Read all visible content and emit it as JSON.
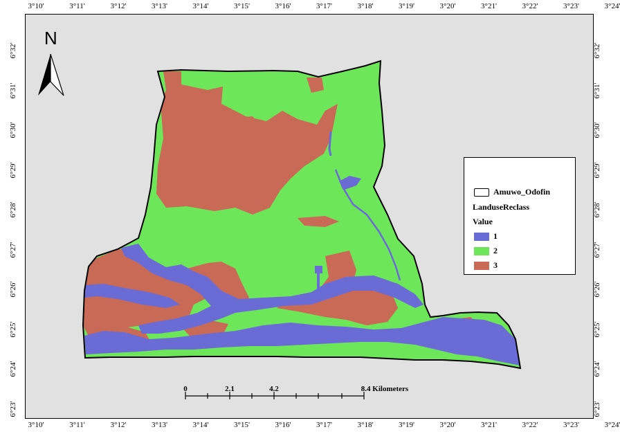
{
  "top_ticks": [
    "3°10'",
    "3°11'",
    "3°12'",
    "3°13'",
    "3°14'",
    "3°15'",
    "3°16'",
    "3°17'",
    "3°18'",
    "3°19'",
    "3°20'",
    "3°21'",
    "3°22'",
    "3°23'",
    "3°24'"
  ],
  "bottom_ticks": [
    "3°10'",
    "3°11'",
    "3°12'",
    "3°13'",
    "3°14'",
    "3°15'",
    "3°16'",
    "3°17'",
    "3°18'",
    "3°19'",
    "3°20'",
    "3°21'",
    "3°22'",
    "3°23'",
    "3°24'"
  ],
  "left_ticks": [
    "6°32'",
    "6°31'",
    "6°30'",
    "6°29'",
    "6°28'",
    "6°27'",
    "6°26'",
    "6°25'",
    "6°24'",
    "6°23'"
  ],
  "right_ticks": [
    "6°32'",
    "6°31'",
    "6°30'",
    "6°29'",
    "6°28'",
    "6°27'",
    "6°26'",
    "6°25'",
    "6°24'",
    "6°23'"
  ],
  "north_arrow": {
    "letter": "N",
    "icon": "north-arrow-icon"
  },
  "legend": {
    "boundary_label": "Amuwo_Odofin",
    "layer_title": "LanduseReclass",
    "value_title": "Value",
    "classes": [
      {
        "label": "1",
        "color": "#6b6bd6"
      },
      {
        "label": "2",
        "color": "#6ee65a"
      },
      {
        "label": "3",
        "color": "#c86a55"
      }
    ]
  },
  "scale_bar": {
    "labels": [
      "0",
      "2.1",
      "4.2",
      "8.4 Kilometers"
    ]
  },
  "colors": {
    "water": "#6b6bd6",
    "vegetation": "#6ee65a",
    "builtup": "#c86a55",
    "background": "#e1e1e1"
  }
}
